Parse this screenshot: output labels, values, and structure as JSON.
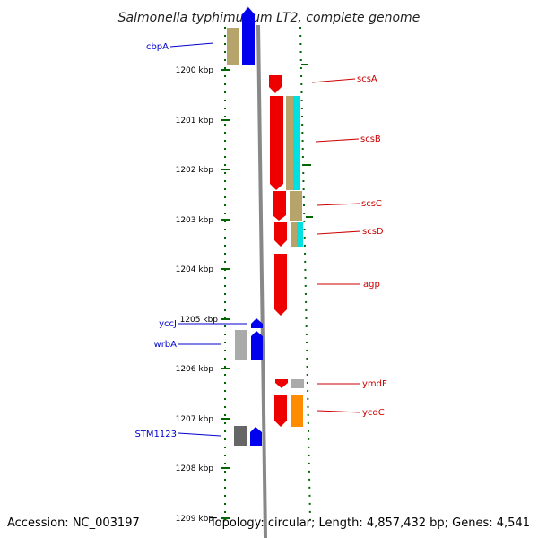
{
  "title": "Salmonella typhimurium LT2, complete genome",
  "footer": {
    "accession": "Accession: NC_003197",
    "topology": "Topology: circular; Length: 4,857,432 bp; Genes: 4,541"
  },
  "kbp_labels": [
    "1200 kbp",
    "1201 kbp",
    "1202 kbp",
    "1203 kbp",
    "1204 kbp",
    "1205 kbp",
    "1206 kbp",
    "1207 kbp",
    "1208 kbp",
    "1209 kbp"
  ],
  "colors": {
    "forward_cds": "#0000ee",
    "reverse_cds": "#ee0000",
    "olive_feature": "#b7a46a",
    "cyan_feature": "#00e0e0",
    "orange_feature": "#ff8c00",
    "grey_feature": "#aaaaaa",
    "dark_grey_feature": "#666666",
    "ruler_ticks": "#006600",
    "backbone": "#888888"
  },
  "genes_left": [
    {
      "name": "cbpA"
    },
    {
      "name": "yccJ"
    },
    {
      "name": "wrbA"
    },
    {
      "name": "STM1123"
    }
  ],
  "genes_right": [
    {
      "name": "scsA"
    },
    {
      "name": "scsB"
    },
    {
      "name": "scsC"
    },
    {
      "name": "scsD"
    },
    {
      "name": "agp"
    },
    {
      "name": "ymdF"
    },
    {
      "name": "ycdC"
    }
  ]
}
